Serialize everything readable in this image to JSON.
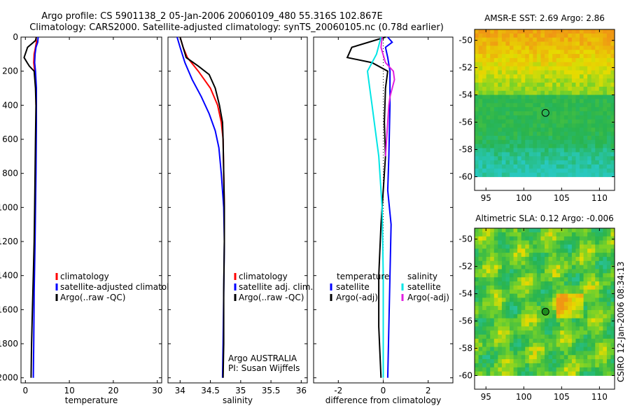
{
  "title_line1": "Argo profile: CS 5901138_2 05-Jan-2006 20060109_480 55.316S 102.867E",
  "title_line2": "Climatology: CARS2000. Satellite-adjusted climatology: synTS_20060105.nc (0.78d earlier)",
  "credit": "CSIRO 12-Jan-2006 08:34:13",
  "colors": {
    "climatology": "#ff0000",
    "satellite": "#0000ff",
    "argo": "#000000",
    "sat_salinity": "#00e5e5",
    "argo_salinity_adj": "#e020e0"
  },
  "chart_data": [
    {
      "type": "line",
      "xlabel": "temperature",
      "xlim": [
        -1,
        31
      ],
      "ylim": [
        2030,
        0
      ],
      "y_reversed": true,
      "xticks": [
        0,
        10,
        20,
        30
      ],
      "yticks": [
        0,
        200,
        400,
        600,
        800,
        1000,
        1200,
        1400,
        1600,
        1800,
        2000
      ],
      "legend": {
        "entries": [
          "climatology",
          "satellite-adjusted climatology",
          "Argo(..raw -QC)"
        ]
      },
      "series": [
        {
          "name": "climatology",
          "color": "#ff0000",
          "points": [
            [
              2.4,
              0
            ],
            [
              2.5,
              30
            ],
            [
              2.3,
              60
            ],
            [
              2.0,
              100
            ],
            [
              1.9,
              150
            ],
            [
              2.1,
              200
            ],
            [
              2.4,
              300
            ],
            [
              2.4,
              400
            ]
          ]
        },
        {
          "name": "satellite-adjusted climatology",
          "color": "#0000ff",
          "points": [
            [
              2.9,
              0
            ],
            [
              2.8,
              30
            ],
            [
              2.4,
              60
            ],
            [
              2.2,
              100
            ],
            [
              2.1,
              150
            ],
            [
              2.3,
              200
            ],
            [
              2.5,
              300
            ],
            [
              2.5,
              500
            ],
            [
              2.4,
              800
            ],
            [
              2.3,
              1000
            ],
            [
              2.2,
              1200
            ],
            [
              2.0,
              1500
            ],
            [
              1.9,
              1800
            ],
            [
              1.8,
              2000
            ]
          ]
        },
        {
          "name": "Argo(..raw -QC)",
          "color": "#000000",
          "points": [
            [
              2.5,
              0
            ],
            [
              2.3,
              20
            ],
            [
              0.5,
              60
            ],
            [
              -0.3,
              120
            ],
            [
              0.4,
              150
            ],
            [
              0.9,
              170
            ],
            [
              2.0,
              200
            ],
            [
              2.3,
              300
            ],
            [
              2.4,
              400
            ],
            [
              2.3,
              600
            ],
            [
              2.2,
              800
            ],
            [
              2.1,
              1000
            ],
            [
              2.0,
              1200
            ],
            [
              1.8,
              1400
            ],
            [
              1.6,
              1600
            ],
            [
              1.4,
              1800
            ],
            [
              1.3,
              2000
            ]
          ]
        }
      ]
    },
    {
      "type": "line",
      "xlabel": "salinity",
      "xlim": [
        33.8,
        36.1
      ],
      "ylim": [
        2030,
        0
      ],
      "y_reversed": true,
      "xticks": [
        34,
        34.5,
        35,
        35.5,
        36
      ],
      "xtick_labels": [
        "34",
        "34.5",
        "35",
        "35.5",
        "36"
      ],
      "yticks": [
        0,
        200,
        400,
        600,
        800,
        1000,
        1200,
        1400,
        1600,
        1800,
        2000
      ],
      "legend": {
        "entries": [
          "climatology",
          "satellite adj. clim.",
          "Argo(..raw -QC)"
        ]
      },
      "annotation": [
        "Argo AUSTRALIA",
        "PI: Susan Wijffels"
      ],
      "series": [
        {
          "name": "climatology",
          "color": "#ff0000",
          "points": [
            [
              34.0,
              0
            ],
            [
              34.05,
              60
            ],
            [
              34.12,
              120
            ],
            [
              34.3,
              200
            ],
            [
              34.5,
              300
            ],
            [
              34.62,
              400
            ],
            [
              34.68,
              500
            ],
            [
              34.71,
              600
            ],
            [
              34.72,
              800
            ],
            [
              34.73,
              1000
            ],
            [
              34.73,
              1200
            ]
          ]
        },
        {
          "name": "satellite adj. clim.",
          "color": "#0000ff",
          "points": [
            [
              33.95,
              0
            ],
            [
              34.0,
              60
            ],
            [
              34.08,
              150
            ],
            [
              34.2,
              250
            ],
            [
              34.35,
              350
            ],
            [
              34.48,
              450
            ],
            [
              34.58,
              550
            ],
            [
              34.64,
              650
            ],
            [
              34.68,
              800
            ],
            [
              34.72,
              1000
            ],
            [
              34.73,
              1200
            ],
            [
              34.72,
              1500
            ],
            [
              34.71,
              1800
            ],
            [
              34.7,
              2000
            ]
          ]
        },
        {
          "name": "Argo(..raw -QC)",
          "color": "#000000",
          "points": [
            [
              34.0,
              0
            ],
            [
              34.05,
              60
            ],
            [
              34.1,
              120
            ],
            [
              34.3,
              170
            ],
            [
              34.48,
              220
            ],
            [
              34.58,
              300
            ],
            [
              34.65,
              400
            ],
            [
              34.7,
              500
            ],
            [
              34.71,
              600
            ],
            [
              34.72,
              800
            ],
            [
              34.73,
              1000
            ],
            [
              34.73,
              1200
            ],
            [
              34.72,
              1500
            ],
            [
              34.72,
              1800
            ],
            [
              34.71,
              2000
            ]
          ]
        }
      ]
    },
    {
      "type": "line",
      "xlabel": "difference from climatology",
      "xlim": [
        -3.1,
        3.1
      ],
      "ylim": [
        2030,
        0
      ],
      "y_reversed": true,
      "xticks": [
        -2,
        0,
        2
      ],
      "yticks": [
        0,
        200,
        400,
        600,
        800,
        1000,
        1200,
        1400,
        1600,
        1800,
        2000
      ],
      "legend": {
        "left_header": "temperature",
        "left_entries": [
          "satellite",
          "Argo(-adj)"
        ],
        "right_header": "salinity",
        "right_entries": [
          "satellite",
          "Argo(-adj)"
        ]
      },
      "series": [
        {
          "name": "temperature satellite",
          "color": "#0000ff",
          "points": [
            [
              0.2,
              0
            ],
            [
              0.4,
              30
            ],
            [
              0.1,
              60
            ],
            [
              0.2,
              120
            ],
            [
              0.3,
              200
            ],
            [
              0.3,
              400
            ],
            [
              0.25,
              700
            ],
            [
              0.2,
              900
            ],
            [
              0.35,
              1100
            ],
            [
              0.3,
              1400
            ],
            [
              0.25,
              1700
            ],
            [
              0.2,
              2000
            ]
          ]
        },
        {
          "name": "temperature Argo(-adj)",
          "color": "#000000",
          "points": [
            [
              0.1,
              0
            ],
            [
              -1.4,
              60
            ],
            [
              -1.6,
              120
            ],
            [
              -0.5,
              150
            ],
            [
              0.2,
              200
            ],
            [
              0.1,
              300
            ],
            [
              0.05,
              500
            ],
            [
              0.1,
              700
            ],
            [
              0.0,
              900
            ],
            [
              -0.1,
              1100
            ],
            [
              -0.2,
              1400
            ],
            [
              -0.2,
              1700
            ],
            [
              -0.1,
              2000
            ]
          ]
        },
        {
          "name": "salinity satellite",
          "color": "#00e5e5",
          "points": [
            [
              -0.1,
              0
            ],
            [
              -0.3,
              100
            ],
            [
              -0.7,
              200
            ],
            [
              -0.6,
              300
            ],
            [
              -0.5,
              400
            ],
            [
              -0.4,
              500
            ],
            [
              -0.3,
              600
            ],
            [
              -0.2,
              700
            ],
            [
              -0.1,
              900
            ],
            [
              -0.05,
              1000
            ],
            [
              0.0,
              1400
            ],
            [
              0.0,
              2000
            ]
          ]
        },
        {
          "name": "salinity Argo(-adj)",
          "color": "#e020e0",
          "points": [
            [
              -0.05,
              0
            ],
            [
              -0.1,
              60
            ],
            [
              0.1,
              150
            ],
            [
              0.45,
              200
            ],
            [
              0.5,
              250
            ],
            [
              0.4,
              300
            ],
            [
              0.3,
              350
            ],
            [
              0.25,
              400
            ],
            [
              0.2,
              500
            ],
            [
              0.15,
              600
            ],
            [
              0.1,
              700
            ]
          ]
        }
      ]
    },
    {
      "type": "heatmap",
      "title": "AMSR-E SST: 2.69  Argo: 2.86",
      "xlim": [
        93.5,
        112
      ],
      "ylim": [
        -61,
        -49.2
      ],
      "xticks": [
        95,
        100,
        105,
        110
      ],
      "yticks": [
        -50,
        -52,
        -54,
        -56,
        -58,
        -60
      ],
      "data_extent": {
        "x": [
          93.5,
          112
        ],
        "y": [
          -60,
          -49.2
        ]
      },
      "marker": {
        "lon": 102.867,
        "lat": -55.316,
        "fill": "none"
      },
      "field": "sst"
    },
    {
      "type": "heatmap",
      "title": "Altimetric SLA: 0.12  Argo: -0.006",
      "xlim": [
        93.5,
        112
      ],
      "ylim": [
        -61,
        -49.2
      ],
      "xticks": [
        95,
        100,
        105,
        110
      ],
      "yticks": [
        -50,
        -52,
        -54,
        -56,
        -58,
        -60
      ],
      "data_extent": {
        "x": [
          93.5,
          112
        ],
        "y": [
          -60,
          -49.2
        ]
      },
      "marker": {
        "lon": 102.867,
        "lat": -55.316,
        "fill": "#1e8c1e"
      },
      "field": "sla"
    }
  ]
}
